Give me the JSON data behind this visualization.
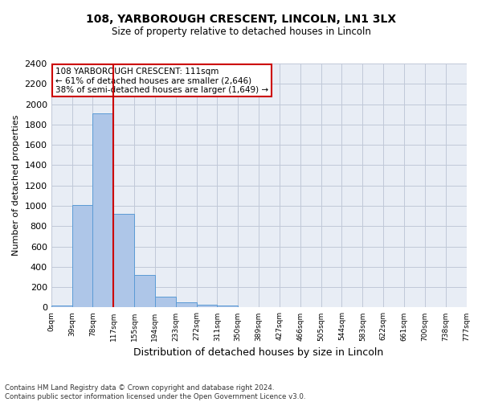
{
  "title": "108, YARBOROUGH CRESCENT, LINCOLN, LN1 3LX",
  "subtitle": "Size of property relative to detached houses in Lincoln",
  "xlabel": "Distribution of detached houses by size in Lincoln",
  "ylabel": "Number of detached properties",
  "bar_values": [
    20,
    1010,
    1910,
    920,
    320,
    110,
    50,
    25,
    20,
    0,
    0,
    0,
    0,
    0,
    0,
    0,
    0,
    0,
    0,
    0
  ],
  "bar_labels": [
    "0sqm",
    "39sqm",
    "78sqm",
    "117sqm",
    "155sqm",
    "194sqm",
    "233sqm",
    "272sqm",
    "311sqm",
    "350sqm",
    "389sqm",
    "427sqm",
    "466sqm",
    "505sqm",
    "544sqm",
    "583sqm",
    "622sqm",
    "661sqm",
    "700sqm",
    "738sqm",
    "777sqm"
  ],
  "bar_color": "#aec6e8",
  "bar_edge_color": "#5b9bd5",
  "vline_color": "#cc0000",
  "vline_position": 3,
  "ylim": [
    0,
    2400
  ],
  "yticks": [
    0,
    200,
    400,
    600,
    800,
    1000,
    1200,
    1400,
    1600,
    1800,
    2000,
    2200,
    2400
  ],
  "annotation_title": "108 YARBOROUGH CRESCENT: 111sqm",
  "annotation_line1": "← 61% of detached houses are smaller (2,646)",
  "annotation_line2": "38% of semi-detached houses are larger (1,649) →",
  "annotation_box_color": "#cc0000",
  "grid_color": "#c0c8d8",
  "background_color": "#e8edf5",
  "footer_line1": "Contains HM Land Registry data © Crown copyright and database right 2024.",
  "footer_line2": "Contains public sector information licensed under the Open Government Licence v3.0."
}
